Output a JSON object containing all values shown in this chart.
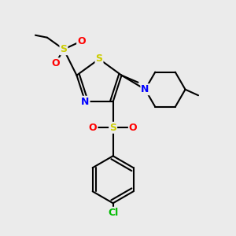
{
  "bg_color": "#ebebeb",
  "atom_colors": {
    "S": "#cccc00",
    "N": "#0000ff",
    "O": "#ff0000",
    "Cl": "#00bb00",
    "C": "#000000"
  },
  "bond_color": "#000000",
  "bond_width": 1.5,
  "xlim": [
    0,
    10
  ],
  "ylim": [
    0,
    10
  ],
  "figsize": [
    3.0,
    3.0
  ],
  "dpi": 100
}
